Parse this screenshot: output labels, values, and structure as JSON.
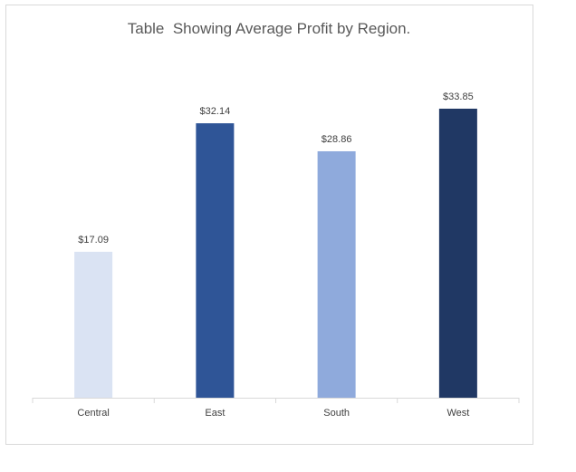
{
  "chart_data": {
    "type": "bar",
    "title": "Table  Showing Average Profit by Region.",
    "categories": [
      "Central",
      "East",
      "South",
      "West"
    ],
    "values": [
      17.09,
      32.14,
      28.86,
      33.85
    ],
    "data_labels": [
      "$17.09",
      "$32.14",
      "$28.86",
      "$33.85"
    ],
    "bar_colors": [
      "#dae3f3",
      "#2f5597",
      "#8faadc",
      "#203864"
    ],
    "xlabel": "",
    "ylabel": "",
    "ylim": [
      0,
      40
    ],
    "grid": false,
    "legend": "none"
  },
  "colors": {
    "axis": "#d9d9d9",
    "border": "#d9d9d9",
    "title": "#595959",
    "text": "#404040"
  }
}
